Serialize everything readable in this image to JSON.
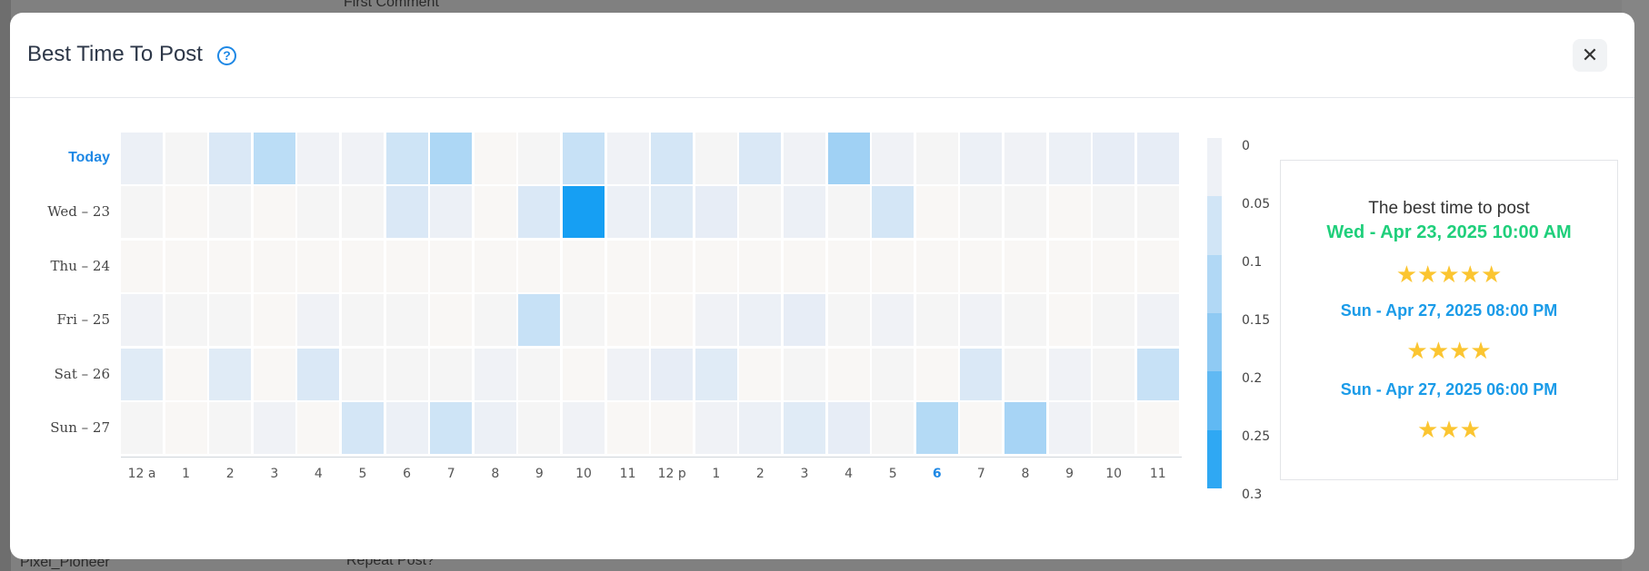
{
  "background": {
    "user_name": "Pixel_Pioneer",
    "repeat_post": "Repeat Post?",
    "first_comment": "First Comment"
  },
  "modal": {
    "title": "Best Time To Post",
    "help_icon": "question-circle-icon",
    "close_icon": "close-icon"
  },
  "chart_data": {
    "type": "heatmap",
    "rows": [
      "Today",
      "Wed – 23",
      "Thu – 24",
      "Fri – 25",
      "Sat – 26",
      "Sun – 27"
    ],
    "columns": [
      "12 a",
      "1",
      "2",
      "3",
      "4",
      "5",
      "6",
      "7",
      "8",
      "9",
      "10",
      "11",
      "12 p",
      "1",
      "2",
      "3",
      "4",
      "5",
      "6",
      "7",
      "8",
      "9",
      "10",
      "11"
    ],
    "highlight_row": 0,
    "highlight_column": 18,
    "color_range": [
      0,
      0.3
    ],
    "scale_ticks": [
      "0",
      "0.05",
      "0.1",
      "0.15",
      "0.2",
      "0.25",
      "0.3"
    ],
    "values": [
      [
        0.03,
        0.01,
        0.06,
        0.11,
        0.02,
        0.02,
        0.08,
        0.13,
        0.0,
        0.01,
        0.09,
        0.02,
        0.07,
        0.01,
        0.06,
        0.02,
        0.15,
        0.02,
        0.01,
        0.03,
        0.02,
        0.03,
        0.04,
        0.04
      ],
      [
        0.01,
        0.0,
        0.01,
        0.0,
        0.01,
        0.01,
        0.06,
        0.03,
        0.0,
        0.06,
        0.3,
        0.03,
        0.05,
        0.04,
        0.01,
        0.03,
        0.01,
        0.07,
        0.0,
        0.01,
        0.01,
        0.0,
        0.01,
        0.01
      ],
      [
        0.0,
        0.0,
        0.0,
        0.0,
        0.0,
        0.0,
        0.0,
        0.0,
        0.0,
        0.0,
        0.0,
        0.0,
        0.0,
        0.0,
        0.0,
        0.0,
        0.0,
        0.0,
        0.0,
        0.0,
        0.0,
        0.0,
        0.0,
        0.0
      ],
      [
        0.02,
        0.01,
        0.01,
        0.0,
        0.02,
        0.01,
        0.01,
        0.0,
        0.01,
        0.09,
        0.01,
        0.0,
        0.0,
        0.02,
        0.03,
        0.04,
        0.01,
        0.02,
        0.01,
        0.02,
        0.01,
        0.0,
        0.01,
        0.02
      ],
      [
        0.05,
        0.0,
        0.05,
        0.0,
        0.06,
        0.01,
        0.01,
        0.01,
        0.02,
        0.01,
        0.0,
        0.02,
        0.04,
        0.05,
        0.0,
        0.01,
        0.0,
        0.01,
        0.0,
        0.06,
        0.01,
        0.02,
        0.01,
        0.09
      ],
      [
        0.01,
        0.0,
        0.01,
        0.02,
        0.0,
        0.07,
        0.03,
        0.08,
        0.03,
        0.01,
        0.02,
        0.0,
        0.0,
        0.02,
        0.03,
        0.05,
        0.04,
        0.01,
        0.12,
        0.0,
        0.14,
        0.02,
        0.01,
        0.0
      ]
    ]
  },
  "best_time": {
    "title": "The best time to post",
    "slots": [
      {
        "time": "Wed - Apr 23, 2025 10:00 AM",
        "stars": 5,
        "color": "#1fcf7b"
      },
      {
        "time": "Sun - Apr 27, 2025 08:00 PM",
        "stars": 4,
        "color": "#1a9be8"
      },
      {
        "time": "Sun - Apr 27, 2025 06:00 PM",
        "stars": 3,
        "color": "#1a9be8"
      }
    ]
  }
}
